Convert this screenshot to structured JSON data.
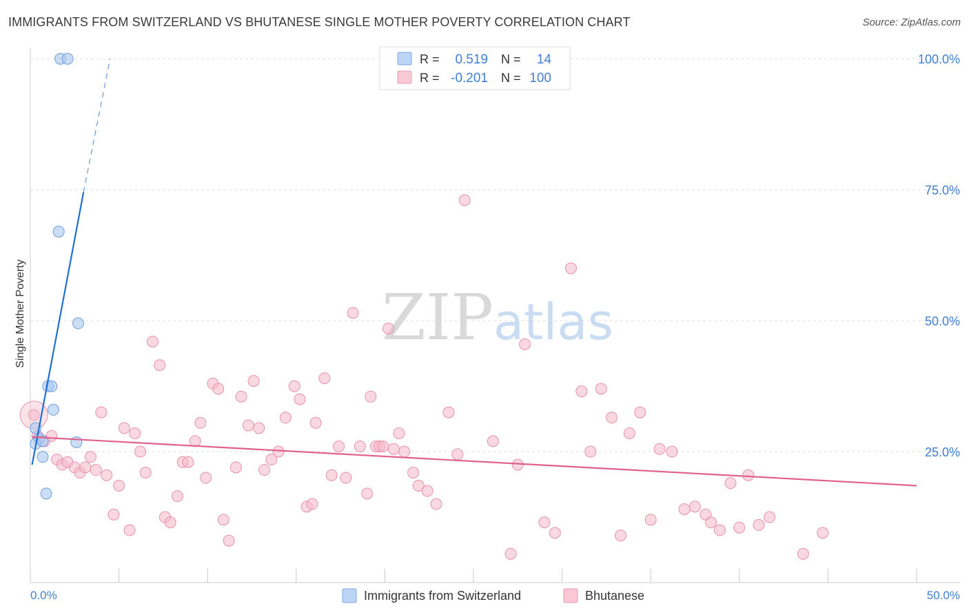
{
  "header": {
    "title": "IMMIGRANTS FROM SWITZERLAND VS BHUTANESE SINGLE MOTHER POVERTY CORRELATION CHART",
    "source": "Source: ZipAtlas.com"
  },
  "watermark": {
    "zip": "ZIP",
    "atlas": "atlas"
  },
  "colors": {
    "blue": "#a9c8f0",
    "blue_stroke": "#6d9ee0",
    "blue_line": "#1f6fd1",
    "pink": "#f6b8cb",
    "pink_stroke": "#e890ad",
    "pink_line": "#e0608b",
    "accent_text": "#3f7fd6",
    "grid": "#dddddd"
  },
  "legend_top": {
    "rows": [
      {
        "r_label": "R =",
        "r_value": "0.519",
        "n_label": "N =",
        "n_value": "14"
      },
      {
        "r_label": "R =",
        "r_value": "-0.201",
        "n_label": "N =",
        "n_value": "100"
      }
    ]
  },
  "chart_data": {
    "type": "scatter",
    "title": "IMMIGRANTS FROM SWITZERLAND VS BHUTANESE SINGLE MOTHER POVERTY CORRELATION CHART",
    "xlabel": "",
    "ylabel": "Single Mother Poverty",
    "xlim": [
      0,
      50
    ],
    "ylim": [
      0,
      102
    ],
    "x_tick_labels": [
      "0.0%",
      "50.0%"
    ],
    "y_tick_labels": [
      "25.0%",
      "50.0%",
      "75.0%",
      "100.0%"
    ],
    "y_ticks": [
      25,
      50,
      75,
      100
    ],
    "grid": true,
    "series": [
      {
        "name": "Immigrants from Switzerland",
        "r": 0.519,
        "n": 14,
        "points": [
          [
            1.7,
            100.0
          ],
          [
            2.1,
            100.0
          ],
          [
            1.6,
            67.0
          ],
          [
            2.7,
            49.5
          ],
          [
            1.0,
            37.5
          ],
          [
            1.2,
            37.5
          ],
          [
            1.3,
            33.0
          ],
          [
            0.3,
            29.5
          ],
          [
            0.5,
            27.5
          ],
          [
            0.3,
            26.5
          ],
          [
            0.7,
            27.0
          ],
          [
            2.6,
            26.8
          ],
          [
            0.7,
            24.0
          ],
          [
            0.9,
            17.0
          ]
        ],
        "trend": {
          "solid": [
            [
              0.1,
              22.5
            ],
            [
              3.0,
              74.5
            ]
          ],
          "dashed": [
            [
              3.0,
              74.5
            ],
            [
              4.5,
              100.0
            ]
          ]
        }
      },
      {
        "name": "Bhutanese",
        "r": -0.201,
        "n": 100,
        "points": [
          [
            0.2,
            32.0
          ],
          [
            0.4,
            28.0
          ],
          [
            0.8,
            27.0
          ],
          [
            1.2,
            28.0
          ],
          [
            1.5,
            23.5
          ],
          [
            1.8,
            22.5
          ],
          [
            2.1,
            23.0
          ],
          [
            2.5,
            22.0
          ],
          [
            2.8,
            21.0
          ],
          [
            3.1,
            22.0
          ],
          [
            3.4,
            24.0
          ],
          [
            3.7,
            21.5
          ],
          [
            4.0,
            32.5
          ],
          [
            4.3,
            20.5
          ],
          [
            4.7,
            13.0
          ],
          [
            5.0,
            18.5
          ],
          [
            5.3,
            29.5
          ],
          [
            5.6,
            10.0
          ],
          [
            5.9,
            28.5
          ],
          [
            6.2,
            25.0
          ],
          [
            6.5,
            21.0
          ],
          [
            6.9,
            46.0
          ],
          [
            7.3,
            41.5
          ],
          [
            7.6,
            12.5
          ],
          [
            7.9,
            11.5
          ],
          [
            8.3,
            16.5
          ],
          [
            8.6,
            23.0
          ],
          [
            8.9,
            23.0
          ],
          [
            9.3,
            27.0
          ],
          [
            9.6,
            30.5
          ],
          [
            9.9,
            20.0
          ],
          [
            10.3,
            38.0
          ],
          [
            10.6,
            37.0
          ],
          [
            10.9,
            12.0
          ],
          [
            11.2,
            8.0
          ],
          [
            11.6,
            22.0
          ],
          [
            11.9,
            35.5
          ],
          [
            12.3,
            30.0
          ],
          [
            12.6,
            38.5
          ],
          [
            12.9,
            29.5
          ],
          [
            13.2,
            21.5
          ],
          [
            13.6,
            23.5
          ],
          [
            14.0,
            25.0
          ],
          [
            14.4,
            31.5
          ],
          [
            14.9,
            37.5
          ],
          [
            15.2,
            35.0
          ],
          [
            15.6,
            14.5
          ],
          [
            15.9,
            15.0
          ],
          [
            16.1,
            30.5
          ],
          [
            16.6,
            39.0
          ],
          [
            17.0,
            20.5
          ],
          [
            17.4,
            26.0
          ],
          [
            17.8,
            20.0
          ],
          [
            18.2,
            51.5
          ],
          [
            18.6,
            26.0
          ],
          [
            19.0,
            17.0
          ],
          [
            19.2,
            35.5
          ],
          [
            19.5,
            26.0
          ],
          [
            19.7,
            26.0
          ],
          [
            19.9,
            26.0
          ],
          [
            20.2,
            48.5
          ],
          [
            20.5,
            25.5
          ],
          [
            20.8,
            28.5
          ],
          [
            21.1,
            25.0
          ],
          [
            21.6,
            21.0
          ],
          [
            21.9,
            18.5
          ],
          [
            22.4,
            17.5
          ],
          [
            22.9,
            15.0
          ],
          [
            23.6,
            32.5
          ],
          [
            24.1,
            24.5
          ],
          [
            24.5,
            73.0
          ],
          [
            26.1,
            27.0
          ],
          [
            27.1,
            5.5
          ],
          [
            27.5,
            22.5
          ],
          [
            27.9,
            45.5
          ],
          [
            29.0,
            11.5
          ],
          [
            29.6,
            9.5
          ],
          [
            30.5,
            60.0
          ],
          [
            31.1,
            36.5
          ],
          [
            31.6,
            25.0
          ],
          [
            32.2,
            37.0
          ],
          [
            32.8,
            31.5
          ],
          [
            33.3,
            9.0
          ],
          [
            33.8,
            28.5
          ],
          [
            34.4,
            32.5
          ],
          [
            35.0,
            12.0
          ],
          [
            35.5,
            25.5
          ],
          [
            36.2,
            25.0
          ],
          [
            36.9,
            14.0
          ],
          [
            37.5,
            14.5
          ],
          [
            38.1,
            13.0
          ],
          [
            38.4,
            11.5
          ],
          [
            38.9,
            10.0
          ],
          [
            39.5,
            19.0
          ],
          [
            40.0,
            10.5
          ],
          [
            40.5,
            20.5
          ],
          [
            41.1,
            11.0
          ],
          [
            41.7,
            12.5
          ],
          [
            43.6,
            5.5
          ],
          [
            44.7,
            9.5
          ]
        ],
        "trend": {
          "solid": [
            [
              0.1,
              27.8
            ],
            [
              50.0,
              18.5
            ]
          ]
        }
      }
    ]
  },
  "legend_bottom": {
    "items": [
      {
        "label": "Immigrants from Switzerland"
      },
      {
        "label": "Bhutanese"
      }
    ]
  }
}
